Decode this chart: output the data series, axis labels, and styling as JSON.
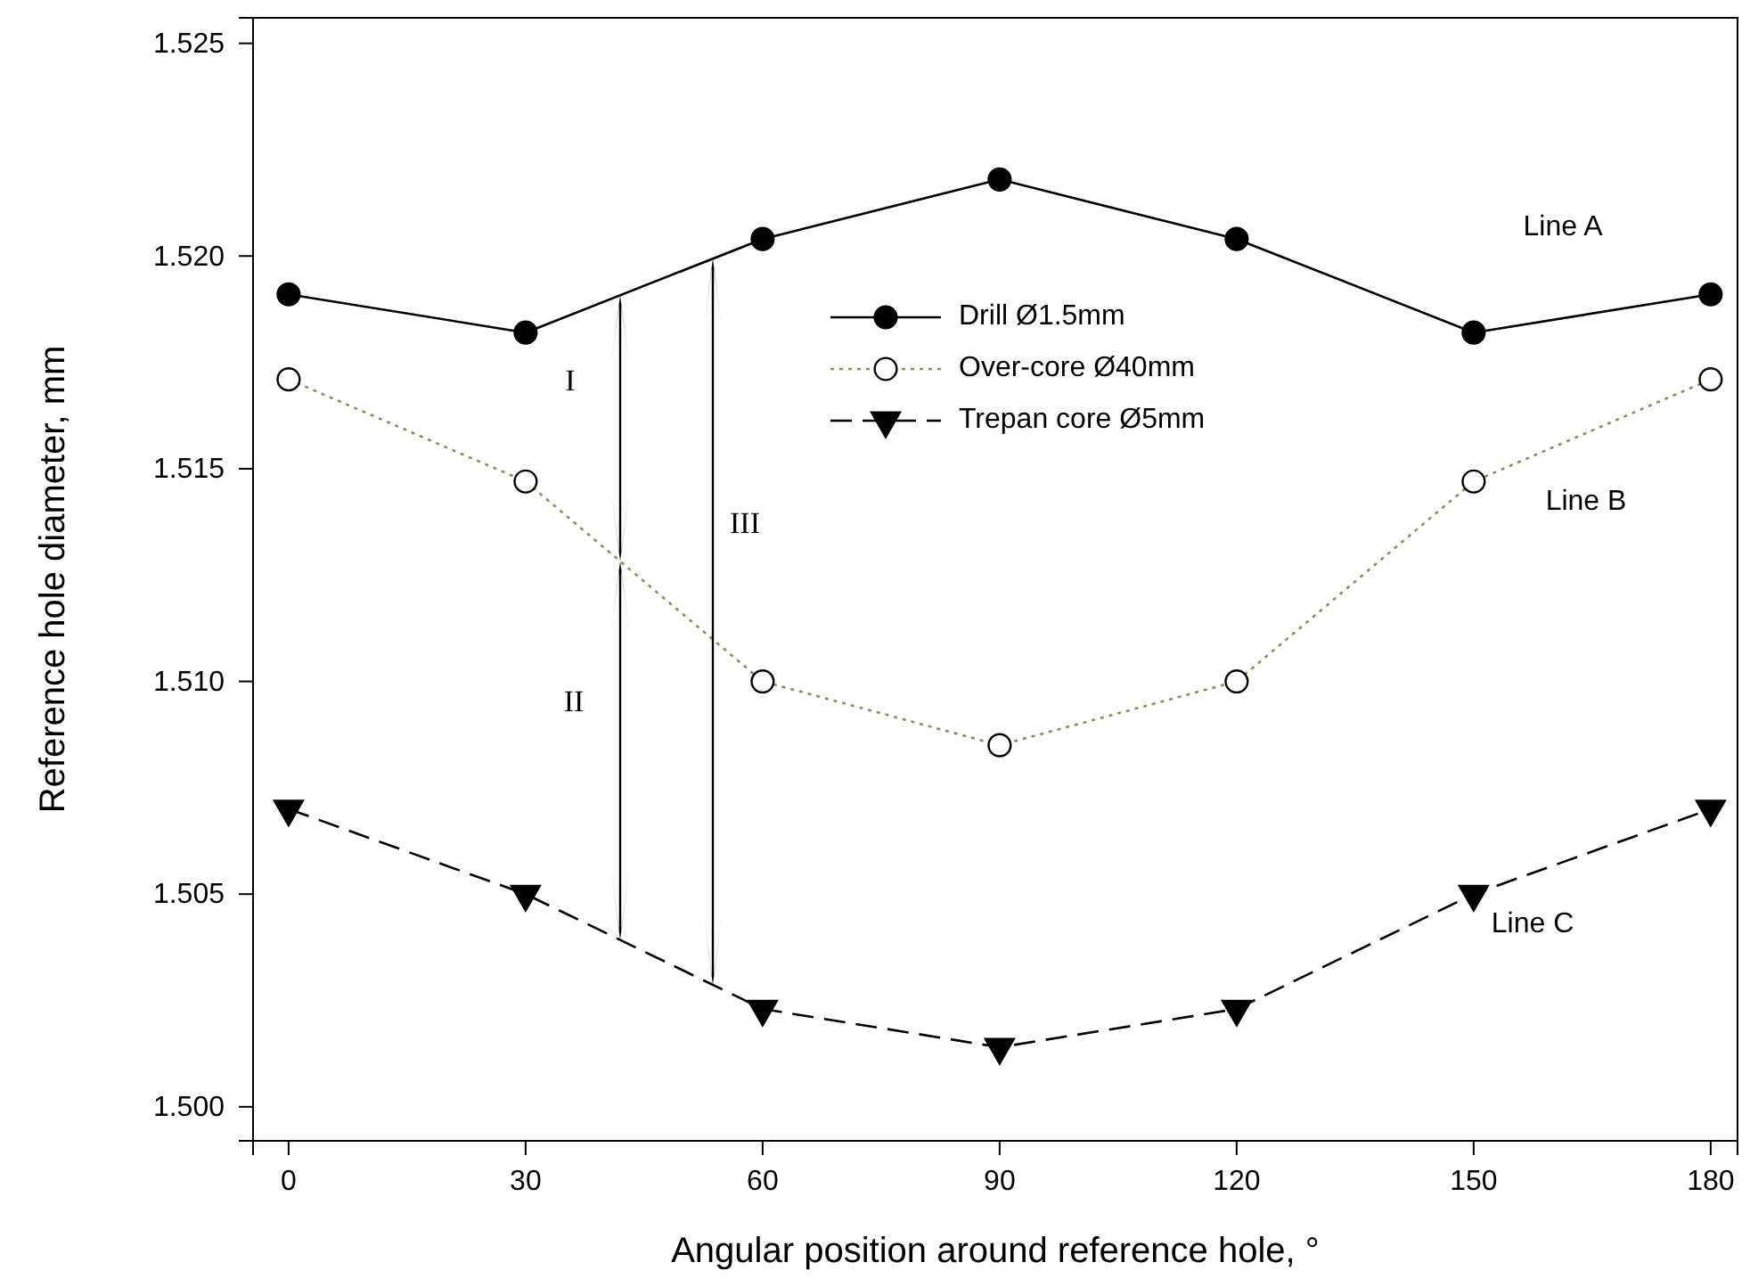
{
  "chart_data": {
    "type": "line",
    "xlabel": "Angular position around reference hole, °",
    "ylabel": "Reference hole diameter, mm",
    "x": [
      0,
      30,
      60,
      90,
      120,
      150,
      180
    ],
    "series": [
      {
        "name": "Drill Ø1.5mm",
        "color": "#000000",
        "marker": "circle",
        "line_style": "solid",
        "values": [
          1.5191,
          1.5182,
          1.5204,
          1.5218,
          1.5204,
          1.5182,
          1.5191
        ]
      },
      {
        "name": "Over-core Ø40mm",
        "color": "#000000",
        "marker": "circle",
        "line_style": "dotted",
        "values": [
          1.5171,
          1.5147,
          1.51,
          1.5085,
          1.51,
          1.5147,
          1.5171
        ]
      },
      {
        "name": "Trepan core Ø5mm",
        "color": "#000000",
        "marker": "triangle",
        "line_style": "dashed",
        "values": [
          1.507,
          1.505,
          1.5023,
          1.5014,
          1.5023,
          1.505,
          1.507
        ]
      }
    ],
    "xlim": [
      -4.5,
      183.4
    ],
    "xticks": [
      0,
      30,
      60,
      90,
      120,
      150,
      180
    ],
    "ylim": [
      1.4992,
      1.5256
    ],
    "yticks": [
      {
        "value": 1.5,
        "label": "1.500"
      },
      1.505,
      {
        "value": 1.51,
        "label": "1.510"
      },
      1.515,
      {
        "value": 1.52,
        "label": "1.520"
      },
      1.525
    ],
    "grid": false,
    "legend": "top",
    "annotations": [
      "Line A",
      "Line B",
      "Line C",
      "I",
      "II",
      "III"
    ]
  }
}
